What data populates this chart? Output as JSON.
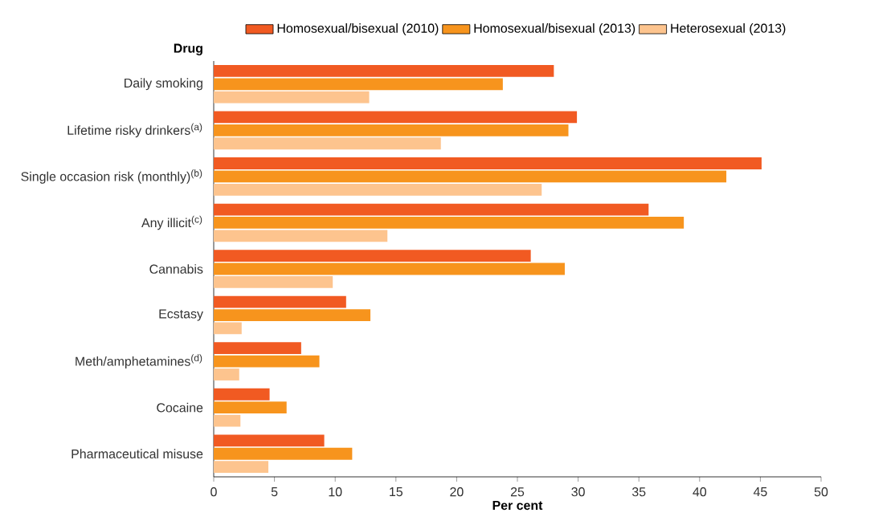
{
  "chart_data": {
    "type": "bar",
    "orientation": "horizontal",
    "ylabel": "Drug",
    "xlabel": "Per cent",
    "categories": [
      "Daily smoking",
      "Lifetime risky drinkers$^{(a)}$",
      "Single occasion risk (monthly)$^{(b)}$",
      "Any illicit$^{(c)}$",
      "Cannabis",
      "Ecstasy",
      "Meth/amphetamines$^{(d)}$",
      "Cocaine",
      "Pharmaceutical misuse"
    ],
    "series": [
      {
        "name": "Homosexual/bisexual (2010)",
        "color": "#f15a22",
        "values": [
          28.0,
          29.9,
          45.1,
          35.8,
          26.1,
          10.9,
          7.2,
          4.6,
          9.1
        ]
      },
      {
        "name": "Homosexual/bisexual (2013)",
        "color": "#f7941d",
        "values": [
          23.8,
          29.2,
          42.2,
          38.7,
          28.9,
          12.9,
          8.7,
          6.0,
          11.4
        ]
      },
      {
        "name": "Heterosexual (2013)",
        "color": "#fdc48e",
        "values": [
          12.8,
          18.7,
          27.0,
          14.3,
          9.8,
          2.3,
          2.1,
          2.2,
          4.5
        ]
      }
    ],
    "xlim": [
      0,
      50
    ],
    "xticks": [
      0,
      5,
      10,
      15,
      20,
      25,
      30,
      35,
      40,
      45,
      50
    ],
    "grid": false,
    "legend": "top"
  }
}
